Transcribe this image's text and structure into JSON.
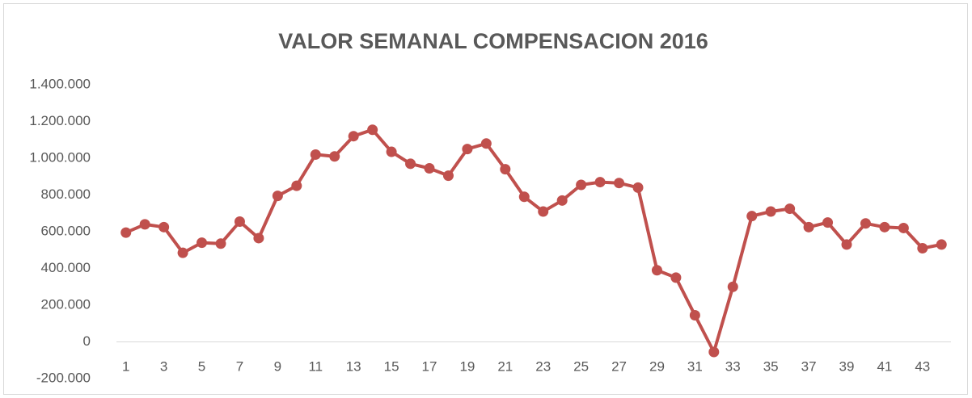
{
  "chart_data": {
    "type": "line",
    "title": "VALOR SEMANAL COMPENSACION 2016",
    "categories": [
      1,
      null,
      3,
      null,
      5,
      null,
      7,
      null,
      9,
      null,
      11,
      null,
      13,
      null,
      15,
      null,
      17,
      null,
      19,
      null,
      21,
      null,
      23,
      null,
      25,
      null,
      27,
      null,
      29,
      null,
      31,
      null,
      33,
      null,
      35,
      null,
      37,
      null,
      39,
      null,
      41,
      null,
      43,
      null
    ],
    "series": [
      {
        "name": "VALOR SEMANAL",
        "color": "#c0504d",
        "values": [
          595000,
          640000,
          625000,
          485000,
          540000,
          535000,
          655000,
          565000,
          795000,
          850000,
          1020000,
          1010000,
          1120000,
          1155000,
          1035000,
          970000,
          945000,
          905000,
          1050000,
          1080000,
          940000,
          790000,
          710000,
          770000,
          855000,
          870000,
          865000,
          840000,
          390000,
          350000,
          145000,
          -55000,
          300000,
          685000,
          710000,
          725000,
          625000,
          650000,
          530000,
          645000,
          625000,
          620000,
          510000,
          530000
        ]
      }
    ],
    "ylim": [
      -200000,
      1400000
    ],
    "yticks": [
      {
        "value": -200000,
        "label": "-200.000"
      },
      0,
      {
        "value": 200000,
        "label": "200.000"
      },
      {
        "value": 400000,
        "label": "400.000"
      },
      {
        "value": 600000,
        "label": "600.000"
      },
      {
        "value": 800000,
        "label": "800.000"
      },
      {
        "value": 1000000,
        "label": "1.000.000"
      },
      {
        "value": 1200000,
        "label": "1.200.000"
      },
      {
        "value": 1400000,
        "label": "1.400.000"
      }
    ],
    "grid": false
  }
}
